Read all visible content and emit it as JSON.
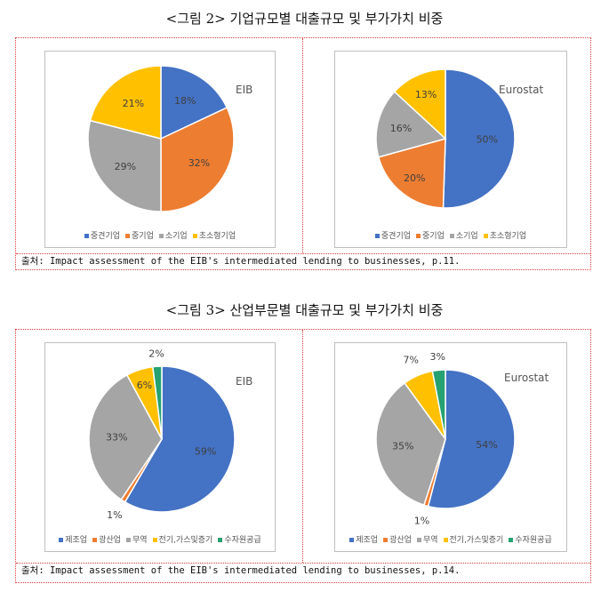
{
  "figures": [
    {
      "title": "<그림 2>  기업규모별 대출규모 및 부가가치 비중",
      "source_prefix": "출처",
      "source_text": ": Impact assessment of the EIB's intermediated lending to businesses, p.11."
    },
    {
      "title": "<그림 3>  산업부문별 대출규모 및 부가가치 비중",
      "source_prefix": "출처",
      "source_text": ": Impact assessment of the EIB's intermediated lending to businesses, p.14."
    }
  ],
  "chart_data": [
    {
      "type": "pie",
      "label": "EIB",
      "categories": [
        "중견기업",
        "중기업",
        "소기업",
        "초소형기업"
      ],
      "values": [
        18,
        32,
        29,
        21
      ],
      "data_labels": [
        "18%",
        "32%",
        "29%",
        "21%"
      ],
      "colors": [
        "#4472C4",
        "#ED7D31",
        "#A5A5A5",
        "#FFC000"
      ],
      "legend_position": "bottom"
    },
    {
      "type": "pie",
      "label": "Eurostat",
      "categories": [
        "중견기업",
        "중기업",
        "소기업",
        "초소형기업"
      ],
      "values": [
        50,
        20,
        16,
        13
      ],
      "data_labels": [
        "50%",
        "20%",
        "16%",
        "13%"
      ],
      "colors": [
        "#4472C4",
        "#ED7D31",
        "#A5A5A5",
        "#FFC000"
      ],
      "legend_position": "bottom"
    },
    {
      "type": "pie",
      "label": "EIB",
      "categories": [
        "제조업",
        "광산업",
        "무역",
        "전기,가스및증기",
        "수자원공급"
      ],
      "values": [
        59,
        1,
        33,
        6,
        2
      ],
      "data_labels": [
        "59%",
        "1%",
        "33%",
        "6%",
        "2%"
      ],
      "colors": [
        "#4472C4",
        "#ED7D31",
        "#A5A5A5",
        "#FFC000",
        "#26A171"
      ],
      "legend_position": "bottom"
    },
    {
      "type": "pie",
      "label": "Eurostat",
      "categories": [
        "제조업",
        "광산업",
        "무역",
        "전기,가스및증기",
        "수자원공급"
      ],
      "values": [
        54,
        1,
        35,
        7,
        3
      ],
      "data_labels": [
        "54%",
        "1%",
        "35%",
        "7%",
        "3%"
      ],
      "colors": [
        "#4472C4",
        "#ED7D31",
        "#A5A5A5",
        "#FFC000",
        "#26A171"
      ],
      "legend_position": "bottom"
    }
  ]
}
